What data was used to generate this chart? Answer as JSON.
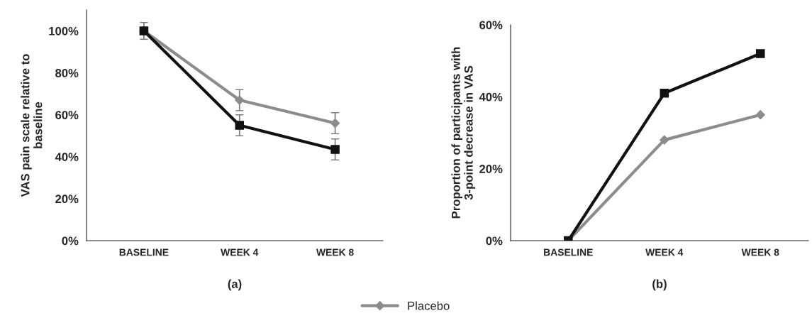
{
  "chart_data": [
    {
      "type": "line",
      "xlabel": "(a)",
      "ylabel": "VAS pain scale relative to\nbaseline",
      "categories": [
        "BASELINE",
        "WEEK 4",
        "WEEK 8"
      ],
      "ylim": [
        0,
        110
      ],
      "yticks": [
        {
          "value": 0,
          "label": "0%"
        },
        {
          "value": 20,
          "label": "20%"
        },
        {
          "value": 40,
          "label": "40%"
        },
        {
          "value": 60,
          "label": "60%"
        },
        {
          "value": 80,
          "label": "80%"
        },
        {
          "value": 100,
          "label": "100%"
        }
      ],
      "grid": false,
      "legend": "bottom",
      "series": [
        {
          "name": "Placebo",
          "color": "#8c8c8c",
          "marker": "diamond",
          "values": [
            100,
            67,
            56
          ],
          "errors": [
            4,
            5,
            5
          ]
        },
        {
          "color": "#111111",
          "marker": "square",
          "values": [
            100,
            55,
            43.5
          ],
          "errors": [
            null,
            5,
            5
          ]
        }
      ]
    },
    {
      "type": "line",
      "xlabel": "(b)",
      "ylabel": "Proportion of participants with\n3-point decrease in VAS",
      "categories": [
        "BASELINE",
        "WEEK 4",
        "WEEK 8"
      ],
      "ylim": [
        0,
        60
      ],
      "yticks": [
        {
          "value": 0,
          "label": "0%"
        },
        {
          "value": 20,
          "label": "20%"
        },
        {
          "value": 40,
          "label": "40%"
        },
        {
          "value": 60,
          "label": "60%"
        }
      ],
      "grid": false,
      "series": [
        {
          "name": "Placebo",
          "color": "#8c8c8c",
          "marker": "diamond",
          "values": [
            0,
            28,
            35
          ]
        },
        {
          "color": "#111111",
          "marker": "square",
          "values": [
            0,
            41,
            52
          ]
        }
      ]
    }
  ]
}
